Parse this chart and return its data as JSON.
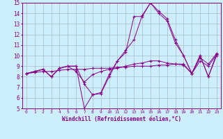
{
  "xlabel": "Windchill (Refroidissement éolien,°C)",
  "background_color": "#cceeff",
  "line_color": "#880088",
  "grid_color": "#aabbcc",
  "xlim": [
    -0.5,
    23.5
  ],
  "ylim": [
    5,
    15
  ],
  "xticks": [
    0,
    1,
    2,
    3,
    4,
    5,
    6,
    7,
    8,
    9,
    10,
    11,
    12,
    13,
    14,
    15,
    16,
    17,
    18,
    19,
    20,
    21,
    22,
    23
  ],
  "yticks": [
    5,
    6,
    7,
    8,
    9,
    10,
    11,
    12,
    13,
    14,
    15
  ],
  "series": [
    [
      8.3,
      8.5,
      8.7,
      8.0,
      8.8,
      9.0,
      9.0,
      7.3,
      6.3,
      6.5,
      8.2,
      9.5,
      10.3,
      13.7,
      13.7,
      15.0,
      14.0,
      13.3,
      11.2,
      10.0,
      8.3,
      10.0,
      8.0,
      10.2
    ],
    [
      8.3,
      8.5,
      8.7,
      8.0,
      8.8,
      9.0,
      9.0,
      5.0,
      6.3,
      6.4,
      8.0,
      9.5,
      10.5,
      11.5,
      13.8,
      15.0,
      14.2,
      13.5,
      11.5,
      10.0,
      8.3,
      10.0,
      8.0,
      10.0
    ],
    [
      8.3,
      8.5,
      8.7,
      8.0,
      8.8,
      9.0,
      8.5,
      7.5,
      8.2,
      8.5,
      8.7,
      8.8,
      9.0,
      9.2,
      9.3,
      9.5,
      9.5,
      9.3,
      9.2,
      9.1,
      8.3,
      9.8,
      9.2,
      10.2
    ],
    [
      8.3,
      8.4,
      8.5,
      8.5,
      8.6,
      8.7,
      8.7,
      8.7,
      8.8,
      8.8,
      8.8,
      8.9,
      8.9,
      9.0,
      9.0,
      9.0,
      9.1,
      9.1,
      9.2,
      9.2,
      8.3,
      9.5,
      9.0,
      10.1
    ]
  ]
}
